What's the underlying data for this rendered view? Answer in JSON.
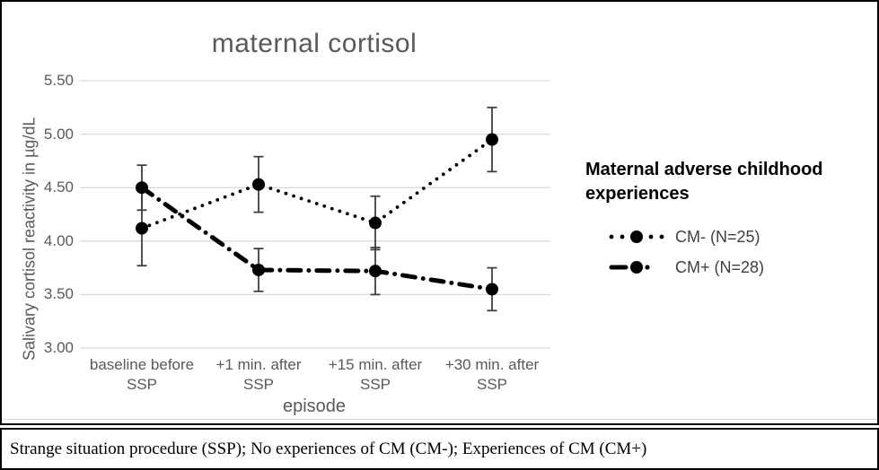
{
  "figure": {
    "title": "maternal cortisol",
    "x_axis_title": "episode",
    "y_axis_title": "Salivary cortisol reactivity in µg/dL"
  },
  "legend": {
    "title": "Maternal adverse childhood experiences",
    "entries": [
      {
        "label": "CM- (N=25)",
        "style": "dotted"
      },
      {
        "label": "CM+ (N=28)",
        "style": "dash-dot"
      }
    ]
  },
  "caption": "Strange situation procedure (SSP); No experiences of CM (CM-); Experiences of CM (CM+)",
  "colors": {
    "series": "#000000",
    "gridline": "#d9d9d9",
    "axis_text": "#595959",
    "legend_text": "#404040",
    "error_bar": "#3f3f3f"
  },
  "chart_data": {
    "type": "line",
    "title": "maternal cortisol",
    "xlabel": "episode",
    "ylabel": "Salivary cortisol reactivity in µg/dL",
    "categories": [
      "baseline before SSP",
      "+1 min. after SSP",
      "+15 min. after SSP",
      "+30 min. after SSP"
    ],
    "y_ticks": [
      "5.50",
      "5.00",
      "4.50",
      "4.00",
      "3.50",
      "3.00"
    ],
    "ylim": [
      3.0,
      5.5
    ],
    "grid": true,
    "legend_position": "right",
    "marker": "circle",
    "error_bars": true,
    "series": [
      {
        "name": "CM- (N=25)",
        "line_style": "dotted",
        "values": [
          4.12,
          4.53,
          4.17,
          4.95
        ],
        "errors": [
          0.35,
          0.26,
          0.25,
          0.3
        ]
      },
      {
        "name": "CM+ (N=28)",
        "line_style": "dash-dot",
        "values": [
          4.5,
          3.73,
          3.72,
          3.55
        ],
        "errors": [
          0.21,
          0.2,
          0.22,
          0.2
        ]
      }
    ]
  }
}
